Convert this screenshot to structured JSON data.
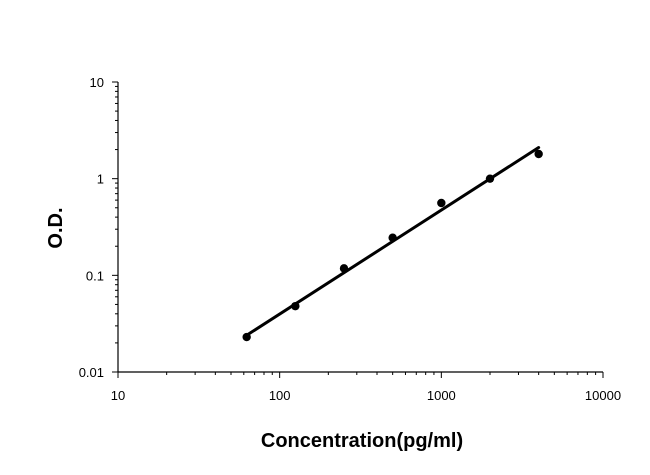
{
  "chart_data": {
    "type": "scatter",
    "title": "",
    "xlabel": "Concentration(pg/ml)",
    "ylabel": "O.D.",
    "xscale": "log",
    "yscale": "log",
    "xlim": [
      10,
      10000
    ],
    "ylim": [
      0.01,
      10
    ],
    "x_ticks": [
      "10",
      "100",
      "1000",
      "10000"
    ],
    "y_ticks": [
      "0.01",
      "0.1",
      "1",
      "10"
    ],
    "grid": false,
    "legend": "none",
    "series": [
      {
        "x": [
          62.5,
          125,
          250,
          500,
          1000,
          2000,
          4000
        ],
        "y": [
          0.023,
          0.048,
          0.118,
          0.245,
          0.56,
          1.0,
          1.8
        ],
        "marker": "circle",
        "color": "#000000"
      }
    ],
    "fit_line": {
      "x": [
        62.5,
        4000
      ],
      "y": [
        0.024,
        2.1
      ],
      "color": "#000000"
    }
  }
}
